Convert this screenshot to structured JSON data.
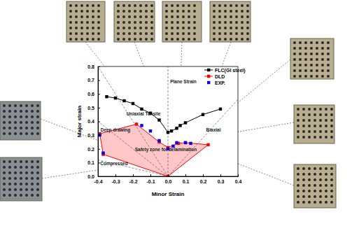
{
  "chart_data": {
    "type": "line",
    "x_label": "Minor Strain",
    "y_label": "Major strain",
    "xlim": [
      -0.4,
      0.4
    ],
    "ylim": [
      0,
      0.8
    ],
    "xticks": [
      -0.4,
      -0.3,
      -0.2,
      -0.1,
      {
        "value": 0,
        "label": "0.0"
      },
      0.1,
      0.2,
      0.3,
      0.4
    ],
    "yticks": [
      {
        "value": 0,
        "label": "0.0"
      },
      0.1,
      0.2,
      0.3,
      0.4,
      0.5,
      0.6,
      0.7,
      0.8
    ],
    "legend": "upper right",
    "series": [
      {
        "name": "FLC(GI steel)",
        "type": "line",
        "color": "#000000",
        "marker": "square",
        "line_style": "solid",
        "x": [
          -0.35,
          -0.3,
          -0.25,
          -0.2,
          -0.15,
          -0.1,
          -0.05,
          0.0,
          0.02,
          0.05,
          0.07,
          0.1,
          0.2,
          0.3
        ],
        "values": [
          0.58,
          0.57,
          0.55,
          0.53,
          0.49,
          0.46,
          0.41,
          0.32,
          0.33,
          0.35,
          0.37,
          0.39,
          0.45,
          0.49
        ]
      },
      {
        "name": "DLD",
        "type": "area",
        "color": "#ff0000",
        "marker": "square",
        "line_style": "solid",
        "x": [
          -0.39,
          -0.18,
          -0.05,
          0.0,
          0.06,
          0.1,
          0.23,
          0.0,
          -0.37
        ],
        "values": [
          0.31,
          0.38,
          0.25,
          0.21,
          0.24,
          0.245,
          0.23,
          0.0,
          0.16
        ]
      },
      {
        "name": "EXP.",
        "type": "scatter",
        "color": "#0000ff",
        "marker": "square",
        "x": [
          -0.39,
          -0.37,
          -0.15,
          -0.1,
          -0.05,
          0.0,
          0.03,
          0.05,
          0.1,
          0.13
        ],
        "values": [
          0.3,
          0.17,
          0.37,
          0.33,
          0.26,
          0.2,
          0.22,
          0.245,
          0.245,
          0.24
        ]
      }
    ],
    "annotations": [
      "Uniaxial Tensile",
      "Plane Strain",
      "Deep drawing",
      "Compressed",
      "Biaxial",
      "Safety zone for delamination"
    ]
  }
}
